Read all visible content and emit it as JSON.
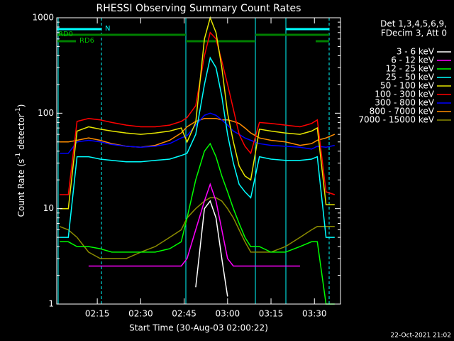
{
  "chart_data": {
    "type": "line",
    "title": "RHESSI Observing Summary Count Rates",
    "xlabel": "Start Time (30-Aug-03 02:00:22)",
    "ylabel": [
      "Count Rate (s",
      "-1",
      " detector",
      "-1",
      ")"
    ],
    "info": [
      "Det 1,3,4,5,6,9,",
      "FDecim 3, Att 0"
    ],
    "flags": [
      "N",
      "RD0",
      "RD6"
    ],
    "footer": "22-Oct-2021 21:02",
    "log_y": true,
    "xlim": [
      "02:01",
      "03:39"
    ],
    "xticks": [
      "02:15",
      "02:30",
      "02:45",
      "03:00",
      "03:15",
      "03:30"
    ],
    "ylim": [
      1,
      1000
    ],
    "yticks": [
      1,
      10,
      100,
      1000
    ],
    "x": [
      "02:02",
      "02:05",
      "02:08",
      "02:12",
      "02:16",
      "02:20",
      "02:25",
      "02:30",
      "02:35",
      "02:40",
      "02:44",
      "02:46",
      "02:49",
      "02:52",
      "02:54",
      "02:56",
      "02:58",
      "03:00",
      "03:02",
      "03:04",
      "03:06",
      "03:08",
      "03:11",
      "03:15",
      "03:20",
      "03:25",
      "03:29",
      "03:31",
      "03:34",
      "03:37"
    ],
    "series": [
      {
        "name": "3 - 6 keV",
        "color": "#ffffff",
        "values": [
          null,
          null,
          null,
          null,
          null,
          null,
          null,
          null,
          null,
          null,
          null,
          null,
          1.5,
          10,
          12,
          8,
          3,
          1.2,
          null,
          null,
          null,
          null,
          null,
          null,
          null,
          null,
          null,
          null,
          null,
          null
        ]
      },
      {
        "name": "6 - 12 keV",
        "color": "#ff00ff",
        "values": [
          null,
          null,
          null,
          2.5,
          2.5,
          2.5,
          2.5,
          2.5,
          2.5,
          2.5,
          2.5,
          3,
          6,
          12,
          18,
          12,
          6,
          3,
          2.5,
          2.5,
          2.5,
          2.5,
          2.5,
          2.5,
          2.5,
          2.5,
          null,
          null,
          null,
          null
        ]
      },
      {
        "name": "12 - 25 keV",
        "color": "#00ff00",
        "values": [
          4.5,
          4.5,
          4,
          4,
          3.8,
          3.5,
          3.5,
          3.5,
          3.5,
          3.8,
          4.5,
          8,
          20,
          40,
          48,
          35,
          22,
          15,
          10,
          7,
          5,
          4,
          4,
          3.5,
          3.5,
          4,
          4.5,
          4.5,
          1,
          1
        ]
      },
      {
        "name": "25 - 50 keV",
        "color": "#00ffff",
        "values": [
          5,
          5,
          35,
          35,
          33,
          32,
          31,
          31,
          32,
          33,
          36,
          38,
          60,
          200,
          380,
          300,
          150,
          60,
          30,
          18,
          15,
          13,
          35,
          33,
          32,
          32,
          33,
          35,
          5,
          5
        ]
      },
      {
        "name": "50 - 100 keV",
        "color": "#e6e600",
        "values": [
          10,
          10,
          65,
          72,
          68,
          65,
          62,
          60,
          62,
          65,
          70,
          50,
          80,
          600,
          1000,
          700,
          300,
          100,
          50,
          28,
          22,
          20,
          68,
          65,
          62,
          60,
          65,
          70,
          11,
          11
        ]
      },
      {
        "name": "100 - 300 keV",
        "color": "#ff0000",
        "values": [
          14,
          14,
          82,
          88,
          85,
          80,
          75,
          72,
          72,
          75,
          82,
          90,
          120,
          400,
          700,
          600,
          350,
          200,
          110,
          60,
          45,
          38,
          80,
          78,
          75,
          72,
          78,
          85,
          15,
          14
        ]
      },
      {
        "name": "300 - 800 keV",
        "color": "#0000ff",
        "values": [
          38,
          38,
          50,
          52,
          50,
          47,
          45,
          44,
          45,
          48,
          55,
          58,
          75,
          95,
          100,
          95,
          85,
          75,
          65,
          60,
          55,
          52,
          48,
          46,
          45,
          44,
          42,
          45,
          44,
          46
        ]
      },
      {
        "name": "800 - 7000 keV",
        "color": "#ff8c00",
        "values": [
          50,
          50,
          52,
          55,
          52,
          48,
          45,
          44,
          46,
          52,
          62,
          72,
          82,
          88,
          88,
          88,
          85,
          85,
          82,
          78,
          70,
          62,
          55,
          52,
          50,
          46,
          48,
          52,
          55,
          60
        ]
      },
      {
        "name": "7000 - 15000 keV",
        "color": "#8b8b00",
        "values": [
          6.5,
          6,
          5,
          3.5,
          3,
          3,
          3,
          3.5,
          4,
          5,
          6,
          8,
          10,
          12,
          13,
          13,
          12,
          10,
          8,
          6,
          4.5,
          3.5,
          3.5,
          3.5,
          4,
          5,
          6,
          6.5,
          6.5,
          6.5
        ]
      }
    ]
  }
}
